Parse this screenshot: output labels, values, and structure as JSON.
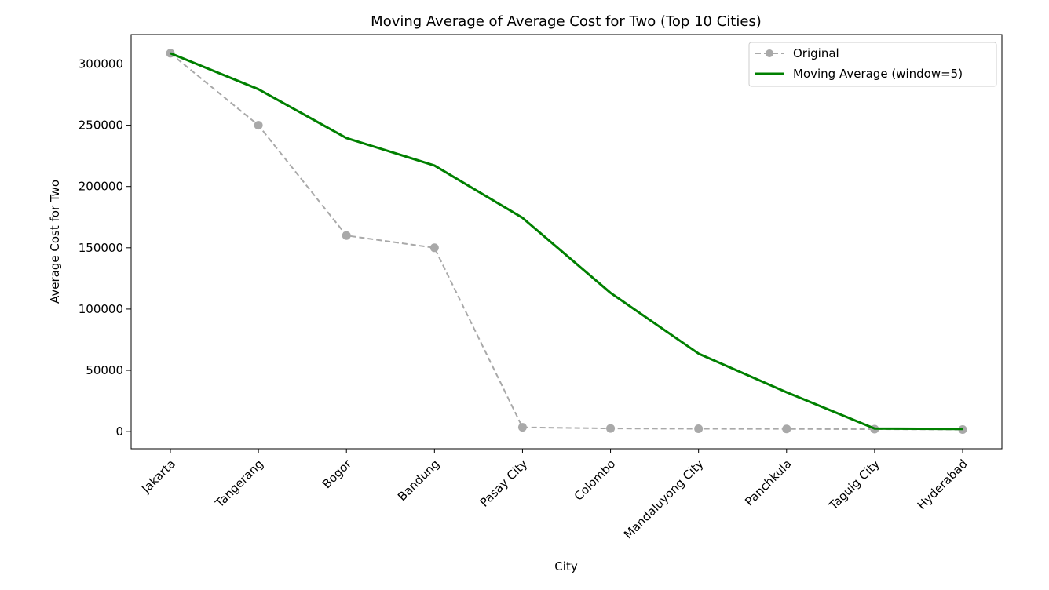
{
  "chart_data": {
    "type": "line",
    "title": "Moving Average of Average Cost for Two (Top 10 Cities)",
    "xlabel": "City",
    "ylabel": "Average Cost for Two",
    "categories": [
      "Jakarta",
      "Tangerang",
      "Bogor",
      "Bandung",
      "Pasay City",
      "Colombo",
      "Mandaluyong City",
      "Panchkula",
      "Taguig City",
      "Hyderabad"
    ],
    "ylim": [
      -14000,
      324000
    ],
    "yticks": [
      0,
      50000,
      100000,
      150000,
      200000,
      250000,
      300000
    ],
    "ytick_labels": [
      "0",
      "50000",
      "100000",
      "150000",
      "200000",
      "250000",
      "300000"
    ],
    "grid": false,
    "legend_position": "upper right",
    "series": [
      {
        "name": "Original",
        "style": "dashed-markers",
        "color": "#a9a9a9",
        "values": [
          308700,
          250000,
          160000,
          150000,
          3500,
          2600,
          2300,
          2200,
          2000,
          1700
        ]
      },
      {
        "name": "Moving Average (window=5)",
        "style": "solid",
        "color": "#008000",
        "values": [
          308700,
          279350,
          239570,
          217180,
          174440,
          113220,
          63680,
          32120,
          2520,
          2160
        ]
      }
    ]
  }
}
